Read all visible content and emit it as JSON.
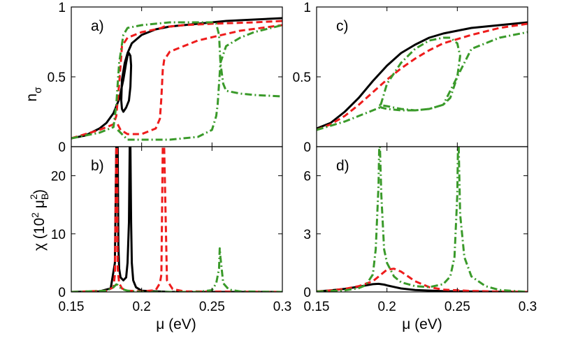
{
  "figure": {
    "xlabel_left": "μ (eV)",
    "xlabel_right": "μ (eV)",
    "ylabel_top_main": "n",
    "ylabel_top_sub": "σ",
    "ylabel_bottom_main": "χ (10",
    "ylabel_bottom_sup": "2",
    "ylabel_bottom_mid": " μ",
    "ylabel_bottom_subB": "B",
    "ylabel_bottom_sup2": "2",
    "ylabel_bottom_end": ")"
  },
  "colors": {
    "black": "#000000",
    "red": "#ee1c1c",
    "green": "#3a9a2a"
  },
  "chart_data": [
    {
      "id": "a",
      "panel_label": "a)",
      "type": "line",
      "xlim": [
        0.15,
        0.3
      ],
      "ylim": [
        0,
        1
      ],
      "yticks": [
        {
          "v": 0,
          "label": "0"
        },
        {
          "v": 0.5,
          "label": "0.5"
        },
        {
          "v": 1,
          "label": "1"
        }
      ],
      "xticks": [
        {
          "v": 0.15,
          "label": ""
        },
        {
          "v": 0.2,
          "label": ""
        },
        {
          "v": 0.25,
          "label": ""
        },
        {
          "v": 0.3,
          "label": ""
        }
      ],
      "series": [
        {
          "name": "black",
          "color": "black",
          "dash": "solid",
          "x": [
            0.15,
            0.16,
            0.17,
            0.175,
            0.18,
            0.184,
            0.187,
            0.189,
            0.19,
            0.191,
            0.192,
            0.1925,
            0.192,
            0.191,
            0.189,
            0.187,
            0.186,
            0.1855,
            0.186,
            0.188,
            0.19,
            0.193,
            0.2,
            0.21,
            0.22,
            0.24,
            0.26,
            0.28,
            0.3
          ],
          "y": [
            0.06,
            0.08,
            0.13,
            0.17,
            0.24,
            0.34,
            0.48,
            0.6,
            0.65,
            0.67,
            0.65,
            0.58,
            0.43,
            0.33,
            0.28,
            0.25,
            0.27,
            0.33,
            0.48,
            0.6,
            0.67,
            0.74,
            0.8,
            0.84,
            0.86,
            0.88,
            0.9,
            0.91,
            0.92
          ]
        },
        {
          "name": "red",
          "color": "red",
          "dash": "dash",
          "x": [
            0.15,
            0.17,
            0.18,
            0.182,
            0.184,
            0.186,
            0.19,
            0.2,
            0.21,
            0.214,
            0.216,
            0.218,
            0.22,
            0.23,
            0.25,
            0.28,
            0.3,
            null,
            0.183,
            0.185,
            0.19,
            0.2,
            0.21,
            0.213,
            0.214,
            0.215,
            0.216,
            0.22,
            0.24,
            0.27,
            0.3
          ],
          "y": [
            0.06,
            0.12,
            0.16,
            0.22,
            0.45,
            0.72,
            0.78,
            0.82,
            0.84,
            0.85,
            0.86,
            0.86,
            0.86,
            0.87,
            0.88,
            0.89,
            0.9,
            null,
            0.16,
            0.12,
            0.09,
            0.09,
            0.13,
            0.2,
            0.35,
            0.55,
            0.62,
            0.68,
            0.76,
            0.83,
            0.87
          ]
        },
        {
          "name": "green",
          "color": "green",
          "dash": "dashdot",
          "x": [
            0.15,
            0.17,
            0.18,
            0.182,
            0.184,
            0.187,
            0.19,
            0.2,
            0.22,
            0.24,
            0.25,
            0.253,
            0.255,
            0.256,
            0.258,
            0.26,
            0.27,
            0.28,
            0.3,
            null,
            0.183,
            0.185,
            0.19,
            0.2,
            0.22,
            0.24,
            0.25,
            0.253,
            0.254,
            0.256,
            0.26,
            0.27,
            0.28,
            0.3
          ],
          "y": [
            0.06,
            0.1,
            0.14,
            0.3,
            0.6,
            0.8,
            0.85,
            0.87,
            0.89,
            0.89,
            0.89,
            0.88,
            0.8,
            0.6,
            0.45,
            0.4,
            0.38,
            0.37,
            0.36,
            null,
            0.12,
            0.1,
            0.05,
            0.05,
            0.05,
            0.07,
            0.12,
            0.22,
            0.3,
            0.6,
            0.72,
            0.78,
            0.82,
            0.87
          ]
        }
      ]
    },
    {
      "id": "b",
      "panel_label": "b)",
      "type": "line",
      "xlim": [
        0.15,
        0.3
      ],
      "ylim": [
        0,
        25
      ],
      "yticks": [
        {
          "v": 0,
          "label": "0"
        },
        {
          "v": 10,
          "label": "10"
        },
        {
          "v": 20,
          "label": "20"
        }
      ],
      "xticks": [
        {
          "v": 0.15,
          "label": "0.15"
        },
        {
          "v": 0.2,
          "label": "0.2"
        },
        {
          "v": 0.25,
          "label": "0.25"
        },
        {
          "v": 0.3,
          "label": "0.3"
        }
      ],
      "series": [
        {
          "name": "black",
          "color": "black",
          "dash": "solid",
          "x": [
            0.15,
            0.17,
            0.178,
            0.181,
            0.182,
            0.183,
            0.1835,
            0.184,
            0.185,
            0.187,
            0.189,
            0.19,
            0.191,
            0.1915,
            0.192,
            0.1925,
            0.193,
            0.194,
            0.196,
            0.2,
            0.22,
            0.3
          ],
          "y": [
            0,
            0.1,
            0.6,
            5,
            25,
            25,
            8,
            4,
            2.5,
            2,
            2.5,
            5,
            12,
            25,
            25,
            12,
            5,
            2,
            0.8,
            0.2,
            0,
            0
          ]
        },
        {
          "name": "red",
          "color": "red",
          "dash": "dash",
          "x": [
            0.15,
            0.175,
            0.18,
            0.181,
            0.182,
            0.1825,
            0.183,
            0.184,
            0.186,
            0.19,
            0.2,
            0.21,
            0.213,
            0.214,
            0.215,
            0.216,
            0.218,
            0.222,
            0.23,
            0.3
          ],
          "y": [
            0,
            0.2,
            0.8,
            3,
            25,
            25,
            4,
            1.5,
            0.6,
            0.2,
            0.1,
            0.3,
            1.5,
            3,
            25,
            25,
            2,
            0.5,
            0.1,
            0
          ]
        },
        {
          "name": "green",
          "color": "green",
          "dash": "dashdot",
          "x": [
            0.15,
            0.175,
            0.18,
            0.182,
            0.183,
            0.184,
            0.186,
            0.19,
            0.2,
            0.24,
            0.25,
            0.253,
            0.255,
            0.2555,
            0.256,
            0.258,
            0.262,
            0.27,
            0.3
          ],
          "y": [
            0,
            0.2,
            0.8,
            1.3,
            1.2,
            0.9,
            0.5,
            0.2,
            0,
            0,
            0.3,
            1.5,
            4,
            7.5,
            6,
            1.5,
            0.4,
            0.1,
            0
          ]
        }
      ]
    },
    {
      "id": "c",
      "panel_label": "c)",
      "type": "line",
      "xlim": [
        0.15,
        0.3
      ],
      "ylim": [
        0,
        1
      ],
      "yticks": [
        {
          "v": 0,
          "label": "0"
        },
        {
          "v": 0.5,
          "label": "0.5"
        },
        {
          "v": 1,
          "label": "1"
        }
      ],
      "xticks": [
        {
          "v": 0.15,
          "label": ""
        },
        {
          "v": 0.2,
          "label": ""
        },
        {
          "v": 0.25,
          "label": ""
        },
        {
          "v": 0.3,
          "label": ""
        }
      ],
      "series": [
        {
          "name": "black",
          "color": "black",
          "dash": "solid",
          "x": [
            0.15,
            0.16,
            0.17,
            0.18,
            0.19,
            0.2,
            0.21,
            0.22,
            0.23,
            0.24,
            0.26,
            0.28,
            0.3
          ],
          "y": [
            0.13,
            0.17,
            0.25,
            0.35,
            0.47,
            0.58,
            0.67,
            0.73,
            0.78,
            0.81,
            0.85,
            0.87,
            0.89
          ]
        },
        {
          "name": "red",
          "color": "red",
          "dash": "dash",
          "x": [
            0.15,
            0.16,
            0.17,
            0.18,
            0.19,
            0.2,
            0.21,
            0.22,
            0.23,
            0.24,
            0.26,
            0.28,
            0.3
          ],
          "y": [
            0.12,
            0.16,
            0.22,
            0.3,
            0.39,
            0.48,
            0.56,
            0.63,
            0.69,
            0.74,
            0.8,
            0.85,
            0.88
          ]
        },
        {
          "name": "green",
          "color": "green",
          "dash": "dashdot",
          "x": [
            0.15,
            0.17,
            0.18,
            0.19,
            0.195,
            0.2,
            0.21,
            0.22,
            0.23,
            0.24,
            0.245,
            0.25,
            0.252,
            0.25,
            0.245,
            0.24,
            0.23,
            0.22,
            0.21,
            0.2,
            0.196,
            0.194,
            0.2,
            0.21,
            0.22,
            0.23,
            0.24,
            0.25,
            0.26,
            0.28,
            0.3
          ],
          "y": [
            0.12,
            0.18,
            0.22,
            0.26,
            0.28,
            0.45,
            0.6,
            0.7,
            0.76,
            0.78,
            0.78,
            0.74,
            0.65,
            0.5,
            0.35,
            0.3,
            0.27,
            0.26,
            0.26,
            0.27,
            0.28,
            0.3,
            0.29,
            0.27,
            0.26,
            0.27,
            0.3,
            0.5,
            0.7,
            0.78,
            0.82
          ]
        }
      ]
    },
    {
      "id": "d",
      "panel_label": "d)",
      "type": "line",
      "xlim": [
        0.15,
        0.3
      ],
      "ylim": [
        0,
        7.5
      ],
      "yticks": [
        {
          "v": 0,
          "label": "0"
        },
        {
          "v": 3,
          "label": "3"
        },
        {
          "v": 6,
          "label": "6"
        }
      ],
      "xticks": [
        {
          "v": 0.15,
          "label": "0.15"
        },
        {
          "v": 0.2,
          "label": "0.2"
        },
        {
          "v": 0.25,
          "label": "0.25"
        },
        {
          "v": 0.3,
          "label": "0.3"
        }
      ],
      "series": [
        {
          "name": "black",
          "color": "black",
          "dash": "solid",
          "x": [
            0.15,
            0.16,
            0.17,
            0.18,
            0.186,
            0.19,
            0.194,
            0.198,
            0.2,
            0.205,
            0.21,
            0.22,
            0.24,
            0.26,
            0.28,
            0.3
          ],
          "y": [
            0.02,
            0.08,
            0.16,
            0.27,
            0.35,
            0.4,
            0.42,
            0.38,
            0.34,
            0.26,
            0.18,
            0.1,
            0.04,
            0.02,
            0.01,
            0
          ]
        },
        {
          "name": "red",
          "color": "red",
          "dash": "dash",
          "x": [
            0.15,
            0.16,
            0.17,
            0.18,
            0.19,
            0.195,
            0.2,
            0.205,
            0.21,
            0.215,
            0.22,
            0.23,
            0.24,
            0.26,
            0.28,
            0.3
          ],
          "y": [
            0.03,
            0.08,
            0.16,
            0.3,
            0.55,
            0.85,
            1.15,
            1.2,
            1.05,
            0.8,
            0.55,
            0.25,
            0.12,
            0.05,
            0.02,
            0
          ]
        },
        {
          "name": "green",
          "color": "green",
          "dash": "dashdot",
          "x": [
            0.15,
            0.17,
            0.18,
            0.185,
            0.19,
            0.192,
            0.194,
            0.1945,
            0.195,
            0.196,
            0.198,
            0.2,
            0.205,
            0.21,
            0.22,
            0.23,
            0.24,
            0.245,
            0.248,
            0.25,
            0.2505,
            0.251,
            0.252,
            0.255,
            0.26,
            0.27,
            0.28,
            0.3
          ],
          "y": [
            0.02,
            0.08,
            0.2,
            0.35,
            0.9,
            2.2,
            5.5,
            7.5,
            7.5,
            5,
            2.2,
            1.5,
            0.8,
            0.5,
            0.3,
            0.25,
            0.4,
            0.8,
            1.8,
            5,
            7.5,
            7.5,
            4,
            1.8,
            0.8,
            0.3,
            0.1,
            0
          ]
        }
      ]
    }
  ]
}
